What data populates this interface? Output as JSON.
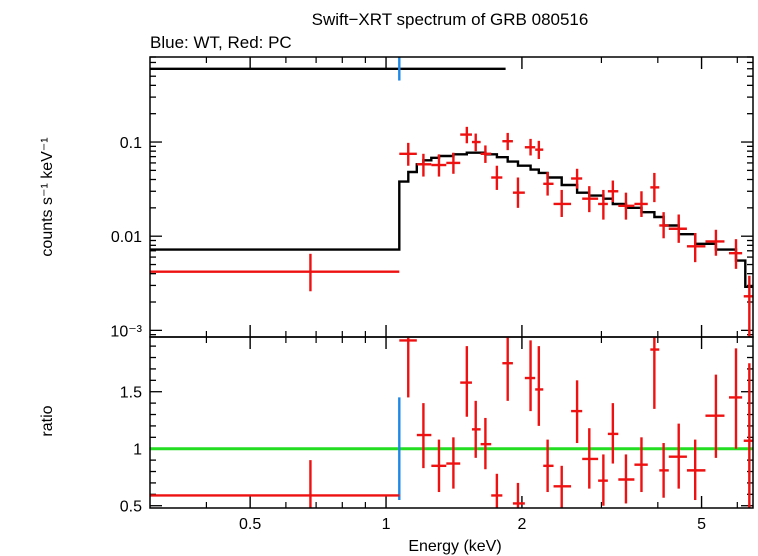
{
  "title": "Swift−XRT spectrum of GRB 080516",
  "subtitle": "Blue: WT, Red: PC",
  "colors": {
    "wt": "#1e88e5",
    "pc": "#ee1111",
    "model": "#000000",
    "unity": "#22dd22"
  },
  "chart_data": [
    {
      "type": "scatter",
      "panel": "top",
      "ylabel": "counts s⁻¹ keV⁻¹",
      "yscale": "log",
      "xscale": "log",
      "xlim": [
        0.3,
        6.5
      ],
      "ylim": [
        0.00085,
        0.8
      ],
      "yticks": [
        {
          "v": 0.001,
          "label": "10⁻³"
        },
        {
          "v": 0.01,
          "label": "0.01"
        },
        {
          "v": 0.1,
          "label": "0.1"
        }
      ],
      "series": [
        {
          "name": "WT",
          "points": [
            {
              "x": 1.07,
              "xlo": 1.07,
              "xhi": 1.07,
              "y": 0.6,
              "ylo": 0.45,
              "yhi": 0.8
            }
          ]
        },
        {
          "name": "PC",
          "points": [
            {
              "x": 0.68,
              "xlo": 0.3,
              "xhi": 1.07,
              "y": 0.0042,
              "ylo": 0.0026,
              "yhi": 0.0065
            },
            {
              "x": 1.12,
              "xlo": 1.07,
              "xhi": 1.17,
              "y": 0.075,
              "ylo": 0.056,
              "yhi": 0.098
            },
            {
              "x": 1.21,
              "xlo": 1.17,
              "xhi": 1.26,
              "y": 0.058,
              "ylo": 0.043,
              "yhi": 0.075
            },
            {
              "x": 1.31,
              "xlo": 1.26,
              "xhi": 1.36,
              "y": 0.057,
              "ylo": 0.043,
              "yhi": 0.074
            },
            {
              "x": 1.41,
              "xlo": 1.36,
              "xhi": 1.46,
              "y": 0.06,
              "ylo": 0.046,
              "yhi": 0.077
            },
            {
              "x": 1.51,
              "xlo": 1.46,
              "xhi": 1.55,
              "y": 0.12,
              "ylo": 0.097,
              "yhi": 0.145
            },
            {
              "x": 1.58,
              "xlo": 1.55,
              "xhi": 1.62,
              "y": 0.1,
              "ylo": 0.08,
              "yhi": 0.123
            },
            {
              "x": 1.66,
              "xlo": 1.62,
              "xhi": 1.71,
              "y": 0.075,
              "ylo": 0.06,
              "yhi": 0.092
            },
            {
              "x": 1.76,
              "xlo": 1.71,
              "xhi": 1.81,
              "y": 0.042,
              "ylo": 0.031,
              "yhi": 0.056
            },
            {
              "x": 1.86,
              "xlo": 1.81,
              "xhi": 1.91,
              "y": 0.102,
              "ylo": 0.082,
              "yhi": 0.125
            },
            {
              "x": 1.96,
              "xlo": 1.91,
              "xhi": 2.03,
              "y": 0.029,
              "ylo": 0.02,
              "yhi": 0.042
            },
            {
              "x": 2.09,
              "xlo": 2.03,
              "xhi": 2.14,
              "y": 0.088,
              "ylo": 0.072,
              "yhi": 0.108
            },
            {
              "x": 2.18,
              "xlo": 2.14,
              "xhi": 2.23,
              "y": 0.083,
              "ylo": 0.066,
              "yhi": 0.103
            },
            {
              "x": 2.28,
              "xlo": 2.23,
              "xhi": 2.35,
              "y": 0.036,
              "ylo": 0.027,
              "yhi": 0.048
            },
            {
              "x": 2.45,
              "xlo": 2.35,
              "xhi": 2.57,
              "y": 0.022,
              "ylo": 0.016,
              "yhi": 0.031
            },
            {
              "x": 2.65,
              "xlo": 2.57,
              "xhi": 2.72,
              "y": 0.041,
              "ylo": 0.032,
              "yhi": 0.052
            },
            {
              "x": 2.82,
              "xlo": 2.72,
              "xhi": 2.95,
              "y": 0.025,
              "ylo": 0.018,
              "yhi": 0.034
            },
            {
              "x": 3.03,
              "xlo": 2.95,
              "xhi": 3.1,
              "y": 0.022,
              "ylo": 0.015,
              "yhi": 0.031
            },
            {
              "x": 3.18,
              "xlo": 3.1,
              "xhi": 3.27,
              "y": 0.03,
              "ylo": 0.023,
              "yhi": 0.039
            },
            {
              "x": 3.4,
              "xlo": 3.27,
              "xhi": 3.55,
              "y": 0.021,
              "ylo": 0.015,
              "yhi": 0.029
            },
            {
              "x": 3.68,
              "xlo": 3.55,
              "xhi": 3.8,
              "y": 0.022,
              "ylo": 0.016,
              "yhi": 0.03
            },
            {
              "x": 3.93,
              "xlo": 3.85,
              "xhi": 4.03,
              "y": 0.033,
              "ylo": 0.023,
              "yhi": 0.047
            },
            {
              "x": 4.12,
              "xlo": 4.03,
              "xhi": 4.23,
              "y": 0.013,
              "ylo": 0.0095,
              "yhi": 0.018
            },
            {
              "x": 4.45,
              "xlo": 4.23,
              "xhi": 4.64,
              "y": 0.012,
              "ylo": 0.0085,
              "yhi": 0.017
            },
            {
              "x": 4.84,
              "xlo": 4.64,
              "xhi": 5.1,
              "y": 0.0078,
              "ylo": 0.0053,
              "yhi": 0.0108
            },
            {
              "x": 5.38,
              "xlo": 5.1,
              "xhi": 5.62,
              "y": 0.0088,
              "ylo": 0.0062,
              "yhi": 0.0117
            },
            {
              "x": 5.96,
              "xlo": 5.75,
              "xhi": 6.15,
              "y": 0.0066,
              "ylo": 0.0045,
              "yhi": 0.0093
            },
            {
              "x": 6.38,
              "xlo": 6.2,
              "xhi": 6.5,
              "y": 0.0023,
              "ylo": 0.00085,
              "yhi": 0.0038
            }
          ]
        }
      ],
      "model_steps": [
        [
          0.3,
          0.6
        ],
        [
          1.84,
          0.6
        ]
      ],
      "model_steps_pc": [
        [
          0.3,
          0.0072
        ],
        [
          1.07,
          0.0072
        ],
        [
          1.07,
          0.038
        ],
        [
          1.12,
          0.038
        ],
        [
          1.12,
          0.048
        ],
        [
          1.17,
          0.048
        ],
        [
          1.17,
          0.058
        ],
        [
          1.21,
          0.058
        ],
        [
          1.21,
          0.064
        ],
        [
          1.26,
          0.064
        ],
        [
          1.26,
          0.068
        ],
        [
          1.31,
          0.068
        ],
        [
          1.31,
          0.071
        ],
        [
          1.41,
          0.071
        ],
        [
          1.41,
          0.074
        ],
        [
          1.51,
          0.074
        ],
        [
          1.51,
          0.077
        ],
        [
          1.66,
          0.077
        ],
        [
          1.66,
          0.074
        ],
        [
          1.76,
          0.074
        ],
        [
          1.76,
          0.069
        ],
        [
          1.86,
          0.069
        ],
        [
          1.86,
          0.062
        ],
        [
          1.96,
          0.062
        ],
        [
          1.96,
          0.056
        ],
        [
          2.09,
          0.056
        ],
        [
          2.09,
          0.051
        ],
        [
          2.18,
          0.051
        ],
        [
          2.18,
          0.047
        ],
        [
          2.28,
          0.047
        ],
        [
          2.28,
          0.042
        ],
        [
          2.45,
          0.042
        ],
        [
          2.45,
          0.035
        ],
        [
          2.65,
          0.035
        ],
        [
          2.65,
          0.029
        ],
        [
          2.82,
          0.029
        ],
        [
          2.82,
          0.027
        ],
        [
          3.03,
          0.027
        ],
        [
          3.03,
          0.025
        ],
        [
          3.18,
          0.025
        ],
        [
          3.18,
          0.022
        ],
        [
          3.4,
          0.022
        ],
        [
          3.4,
          0.02
        ],
        [
          3.68,
          0.02
        ],
        [
          3.68,
          0.018
        ],
        [
          3.93,
          0.018
        ],
        [
          3.93,
          0.016
        ],
        [
          4.12,
          0.016
        ],
        [
          4.12,
          0.013
        ],
        [
          4.45,
          0.013
        ],
        [
          4.45,
          0.0105
        ],
        [
          4.84,
          0.0105
        ],
        [
          4.84,
          0.0083
        ],
        [
          5.38,
          0.0083
        ],
        [
          5.38,
          0.0072
        ],
        [
          5.96,
          0.0072
        ],
        [
          5.96,
          0.0055
        ],
        [
          6.25,
          0.0055
        ],
        [
          6.25,
          0.0029
        ],
        [
          6.5,
          0.0029
        ]
      ]
    },
    {
      "type": "scatter",
      "panel": "bottom",
      "xlabel": "Energy (keV)",
      "ylabel": "ratio",
      "xscale": "log",
      "xlim": [
        0.3,
        6.5
      ],
      "ylim": [
        0.48,
        1.98
      ],
      "xticks": [
        {
          "v": 0.5,
          "label": "0.5"
        },
        {
          "v": 1,
          "label": "1"
        },
        {
          "v": 2,
          "label": "2"
        },
        {
          "v": 5,
          "label": "5"
        }
      ],
      "yticks": [
        {
          "v": 0.5,
          "label": "0.5"
        },
        {
          "v": 1,
          "label": "1"
        },
        {
          "v": 1.5,
          "label": "1.5"
        }
      ],
      "unity": 1,
      "series": [
        {
          "name": "WT",
          "points": [
            {
              "x": 1.07,
              "xlo": 1.07,
              "xhi": 1.07,
              "y": 1.0,
              "ylo": 0.55,
              "yhi": 1.45
            }
          ]
        },
        {
          "name": "PC",
          "points": [
            {
              "x": 0.68,
              "xlo": 0.3,
              "xhi": 1.07,
              "y": 0.59,
              "ylo": 0.36,
              "yhi": 0.9
            },
            {
              "x": 1.12,
              "xlo": 1.07,
              "xhi": 1.17,
              "y": 1.95,
              "ylo": 1.45,
              "yhi": 2.5
            },
            {
              "x": 1.21,
              "xlo": 1.17,
              "xhi": 1.26,
              "y": 1.12,
              "ylo": 0.83,
              "yhi": 1.4
            },
            {
              "x": 1.31,
              "xlo": 1.26,
              "xhi": 1.36,
              "y": 0.85,
              "ylo": 0.62,
              "yhi": 1.08
            },
            {
              "x": 1.41,
              "xlo": 1.36,
              "xhi": 1.46,
              "y": 0.87,
              "ylo": 0.65,
              "yhi": 1.1
            },
            {
              "x": 1.51,
              "xlo": 1.46,
              "xhi": 1.55,
              "y": 1.58,
              "ylo": 1.28,
              "yhi": 1.9
            },
            {
              "x": 1.58,
              "xlo": 1.55,
              "xhi": 1.62,
              "y": 1.17,
              "ylo": 0.92,
              "yhi": 1.42
            },
            {
              "x": 1.66,
              "xlo": 1.62,
              "xhi": 1.71,
              "y": 1.04,
              "ylo": 0.82,
              "yhi": 1.27
            },
            {
              "x": 1.76,
              "xlo": 1.71,
              "xhi": 1.81,
              "y": 0.59,
              "ylo": 0.42,
              "yhi": 0.78
            },
            {
              "x": 1.86,
              "xlo": 1.81,
              "xhi": 1.91,
              "y": 1.75,
              "ylo": 1.42,
              "yhi": 2.1
            },
            {
              "x": 1.96,
              "xlo": 1.91,
              "xhi": 2.03,
              "y": 0.52,
              "ylo": 0.35,
              "yhi": 0.7
            },
            {
              "x": 2.09,
              "xlo": 2.03,
              "xhi": 2.14,
              "y": 1.62,
              "ylo": 1.33,
              "yhi": 1.95
            },
            {
              "x": 2.18,
              "xlo": 2.14,
              "xhi": 2.23,
              "y": 1.52,
              "ylo": 1.2,
              "yhi": 1.9
            },
            {
              "x": 2.28,
              "xlo": 2.23,
              "xhi": 2.35,
              "y": 0.85,
              "ylo": 0.62,
              "yhi": 1.08
            },
            {
              "x": 2.45,
              "xlo": 2.35,
              "xhi": 2.57,
              "y": 0.67,
              "ylo": 0.48,
              "yhi": 0.85
            },
            {
              "x": 2.65,
              "xlo": 2.57,
              "xhi": 2.72,
              "y": 1.33,
              "ylo": 1.05,
              "yhi": 1.6
            },
            {
              "x": 2.82,
              "xlo": 2.72,
              "xhi": 2.95,
              "y": 0.91,
              "ylo": 0.65,
              "yhi": 1.18
            },
            {
              "x": 3.03,
              "xlo": 2.95,
              "xhi": 3.1,
              "y": 0.72,
              "ylo": 0.5,
              "yhi": 0.95
            },
            {
              "x": 3.18,
              "xlo": 3.1,
              "xhi": 3.27,
              "y": 1.13,
              "ylo": 0.87,
              "yhi": 1.4
            },
            {
              "x": 3.4,
              "xlo": 3.27,
              "xhi": 3.55,
              "y": 0.73,
              "ylo": 0.52,
              "yhi": 0.95
            },
            {
              "x": 3.68,
              "xlo": 3.55,
              "xhi": 3.8,
              "y": 0.86,
              "ylo": 0.62,
              "yhi": 1.1
            },
            {
              "x": 3.93,
              "xlo": 3.85,
              "xhi": 4.03,
              "y": 1.87,
              "ylo": 1.35,
              "yhi": 2.4
            },
            {
              "x": 4.12,
              "xlo": 4.03,
              "xhi": 4.23,
              "y": 0.81,
              "ylo": 0.57,
              "yhi": 1.05
            },
            {
              "x": 4.45,
              "xlo": 4.23,
              "xhi": 4.64,
              "y": 0.93,
              "ylo": 0.65,
              "yhi": 1.22
            },
            {
              "x": 4.84,
              "xlo": 4.64,
              "xhi": 5.1,
              "y": 0.81,
              "ylo": 0.55,
              "yhi": 1.08
            },
            {
              "x": 5.38,
              "xlo": 5.1,
              "xhi": 5.62,
              "y": 1.29,
              "ylo": 0.92,
              "yhi": 1.65
            },
            {
              "x": 5.96,
              "xlo": 5.75,
              "xhi": 6.15,
              "y": 1.45,
              "ylo": 1.0,
              "yhi": 1.88
            },
            {
              "x": 6.38,
              "xlo": 6.2,
              "xhi": 6.5,
              "y": 1.07,
              "ylo": 0.4,
              "yhi": 1.75
            }
          ]
        }
      ]
    }
  ]
}
